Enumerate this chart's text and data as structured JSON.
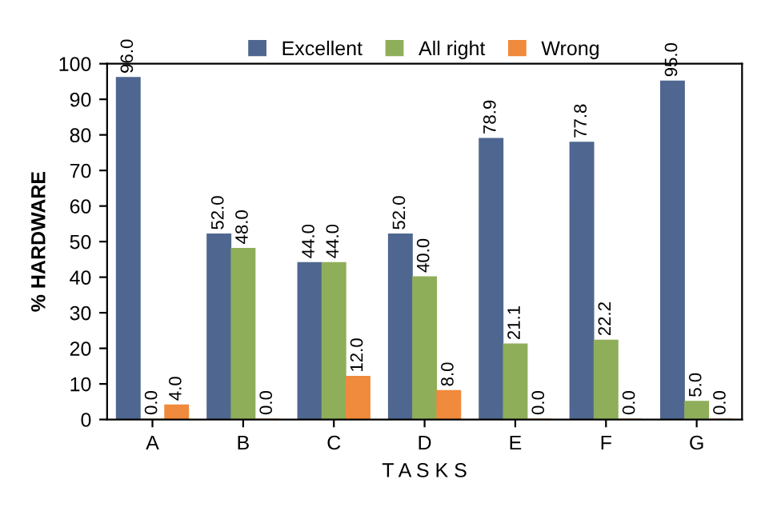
{
  "chart_data": {
    "type": "bar",
    "xlabel": "T A S K S",
    "ylabel": "% HARDWARE",
    "categories": [
      "A",
      "B",
      "C",
      "D",
      "E",
      "F",
      "G"
    ],
    "series": [
      {
        "name": "Excellent",
        "color": "#4f6790",
        "values": [
          96.0,
          52.0,
          44.0,
          52.0,
          78.9,
          77.8,
          95.0
        ],
        "value_labels": [
          "96.0",
          "52.0",
          "44.0",
          "52.0",
          "78.9",
          "77.8",
          "95.0"
        ]
      },
      {
        "name": "All right",
        "color": "#8fae5a",
        "values": [
          0.0,
          48.0,
          44.0,
          40.0,
          21.1,
          22.2,
          5.0
        ],
        "value_labels": [
          "0.0",
          "48.0",
          "44.0",
          "40.0",
          "21.1",
          "22.2",
          "5.0"
        ]
      },
      {
        "name": "Wrong",
        "color": "#f08a3c",
        "values": [
          4.0,
          0.0,
          12.0,
          8.0,
          0.0,
          0.0,
          0.0
        ],
        "value_labels": [
          "4.0",
          "0.0",
          "12.0",
          "8.0",
          "0.0",
          "0.0",
          "0.0"
        ]
      }
    ],
    "ylim": [
      0,
      100
    ],
    "yticks": [
      0,
      10,
      20,
      30,
      40,
      50,
      60,
      70,
      80,
      90,
      100
    ],
    "grid": false,
    "legend": "top"
  }
}
